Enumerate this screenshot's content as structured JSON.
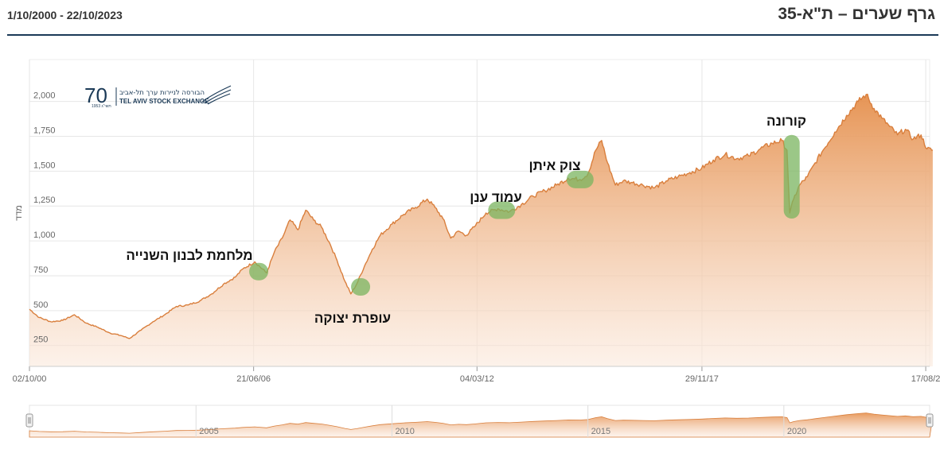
{
  "header": {
    "title": "גרף שערים – ת\"א-35",
    "date_range": "1/10/2000 - 22/10/2023"
  },
  "logo": {
    "number": "70",
    "years": "1953 תשי\"ג",
    "hebrew_name": "הבורסה לניירות ערך תל-אביב",
    "english_name": "TEL AVIV STOCK EXCHANGE"
  },
  "colors": {
    "line": "#d97f3d",
    "area_top": "#e58f4c",
    "area_bottom": "#fbe9dc",
    "highlight": "#7ab45f",
    "grid": "#e6e6e6",
    "axis_text": "#666666"
  },
  "chart_data": {
    "type": "area",
    "title": "גרף שערים – ת\"א-35",
    "ylabel": "מדד",
    "xlabel": "",
    "ylim": [
      100,
      2300
    ],
    "x_range": [
      "2000-10-02",
      "2023-10-22"
    ],
    "y_ticks": [
      {
        "value": 250,
        "label": "250"
      },
      {
        "value": 500,
        "label": "500"
      },
      {
        "value": 750,
        "label": "750"
      },
      {
        "value": 1000,
        "label": "1,000"
      },
      {
        "value": 1250,
        "label": "1,250"
      },
      {
        "value": 1500,
        "label": "1,500"
      },
      {
        "value": 1750,
        "label": "1,750"
      },
      {
        "value": 2000,
        "label": "2,000"
      }
    ],
    "x_ticks": [
      {
        "year": 2000.75,
        "label": "02/10/00"
      },
      {
        "year": 2006.47,
        "label": "21/06/06"
      },
      {
        "year": 2012.17,
        "label": "04/03/12"
      },
      {
        "year": 2017.91,
        "label": "29/11/17"
      },
      {
        "year": 2023.62,
        "label": "17/08/2"
      }
    ],
    "series": [
      {
        "name": "ת\"א-35",
        "x": [
          2000.75,
          2001.0,
          2001.3,
          2001.6,
          2001.9,
          2002.2,
          2002.5,
          2002.8,
          2003.1,
          2003.3,
          2003.6,
          2003.9,
          2004.2,
          2004.5,
          2004.8,
          2005.1,
          2005.4,
          2005.7,
          2006.0,
          2006.2,
          2006.5,
          2006.8,
          2007.0,
          2007.2,
          2007.4,
          2007.6,
          2007.8,
          2008.0,
          2008.2,
          2008.4,
          2008.6,
          2008.8,
          2008.95,
          2009.1,
          2009.3,
          2009.5,
          2009.7,
          2010.0,
          2010.3,
          2010.6,
          2010.9,
          2011.1,
          2011.3,
          2011.5,
          2011.7,
          2011.9,
          2012.1,
          2012.4,
          2012.7,
          2013.0,
          2013.3,
          2013.6,
          2013.9,
          2014.2,
          2014.5,
          2014.8,
          2015.0,
          2015.2,
          2015.35,
          2015.5,
          2015.7,
          2015.9,
          2016.1,
          2016.4,
          2016.7,
          2017.0,
          2017.3,
          2017.6,
          2017.9,
          2018.2,
          2018.5,
          2018.8,
          2019.1,
          2019.4,
          2019.7,
          2019.95,
          2020.08,
          2020.15,
          2020.25,
          2020.4,
          2020.6,
          2020.8,
          2021.0,
          2021.3,
          2021.6,
          2021.9,
          2022.1,
          2022.3,
          2022.5,
          2022.7,
          2022.9,
          2023.1,
          2023.3,
          2023.5,
          2023.65,
          2023.8
        ],
        "y": [
          510,
          450,
          420,
          430,
          470,
          410,
          380,
          340,
          320,
          300,
          360,
          420,
          470,
          530,
          540,
          570,
          620,
          690,
          740,
          800,
          850,
          770,
          920,
          1020,
          1150,
          1080,
          1220,
          1150,
          1100,
          990,
          860,
          710,
          620,
          690,
          820,
          940,
          1040,
          1120,
          1190,
          1240,
          1300,
          1240,
          1160,
          1020,
          1070,
          1040,
          1100,
          1200,
          1230,
          1210,
          1260,
          1320,
          1360,
          1400,
          1450,
          1440,
          1480,
          1650,
          1720,
          1560,
          1400,
          1430,
          1420,
          1400,
          1380,
          1430,
          1460,
          1490,
          1520,
          1580,
          1620,
          1590,
          1610,
          1660,
          1700,
          1720,
          1650,
          1200,
          1300,
          1400,
          1460,
          1560,
          1650,
          1780,
          1900,
          2000,
          2050,
          1950,
          1880,
          1820,
          1760,
          1800,
          1730,
          1760,
          1660,
          1650
        ]
      }
    ],
    "annotations": [
      {
        "label": "מלחמת לבנון השנייה",
        "year": 2006.6,
        "value": 780
      },
      {
        "label": "עופרת יצוקה",
        "year": 2009.2,
        "value": 670
      },
      {
        "label": "עמוד ענן",
        "year": 2012.8,
        "value": 1220
      },
      {
        "label": "צוק איתן",
        "year": 2014.8,
        "value": 1440
      },
      {
        "label": "קורונה",
        "year": 2020.2,
        "value_top": 1760,
        "value_bottom": 1160
      }
    ],
    "navigator_labels": [
      "2005",
      "2010",
      "2015",
      "2020"
    ]
  }
}
